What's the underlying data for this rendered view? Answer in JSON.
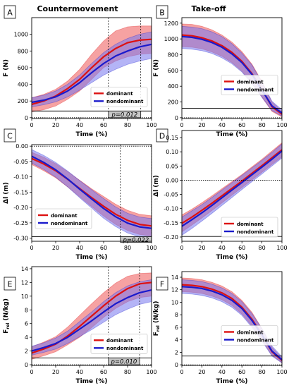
{
  "figure": {
    "col_titles": [
      "Countermovement",
      "Take-off"
    ],
    "colors": {
      "dominant": "#dd1111",
      "nondominant": "#1a1acc",
      "dominant_band": "#ee5555",
      "nondominant_band": "#7777ee",
      "significance_fill": "#c8c8c8"
    }
  },
  "chart_data": [
    {
      "panel": "A",
      "type": "line",
      "xlabel": "Time (%)",
      "ylabel": "F (N)",
      "xlim": [
        0,
        100
      ],
      "ylim": [
        -10,
        1200
      ],
      "xticks": [
        0,
        20,
        40,
        60,
        80,
        100
      ],
      "yticks": [
        0,
        200,
        400,
        600,
        800,
        1000
      ],
      "ytick_labels": [
        "0",
        "200",
        "400",
        "600",
        "800",
        "1000"
      ],
      "x": [
        0,
        10,
        20,
        30,
        40,
        50,
        60,
        70,
        80,
        90,
        100
      ],
      "series": [
        {
          "name": "dominant",
          "mean": [
            160,
            200,
            260,
            350,
            460,
            600,
            730,
            830,
            900,
            930,
            940
          ],
          "lower": [
            70,
            95,
            140,
            220,
            320,
            460,
            600,
            680,
            730,
            760,
            770
          ],
          "upper": [
            240,
            280,
            340,
            440,
            580,
            760,
            920,
            1040,
            1090,
            1100,
            1100
          ]
        },
        {
          "name": "nondominant",
          "mean": [
            185,
            210,
            250,
            320,
            420,
            540,
            650,
            740,
            800,
            850,
            880
          ],
          "lower": [
            130,
            155,
            190,
            250,
            330,
            420,
            510,
            580,
            640,
            680,
            710
          ],
          "upper": [
            240,
            270,
            320,
            400,
            510,
            650,
            780,
            880,
            950,
            1000,
            1030
          ]
        }
      ],
      "hline": 0,
      "threshold": 80,
      "significant_interval": [
        64,
        91
      ],
      "p_label": "p=0.012",
      "legend_loc": "lower right"
    },
    {
      "panel": "B",
      "type": "line",
      "xlabel": "Time (%)",
      "ylabel": "F (N)",
      "xlim": [
        0,
        100
      ],
      "ylim": [
        -10,
        1270
      ],
      "xticks": [
        0,
        20,
        40,
        60,
        80,
        100
      ],
      "yticks": [
        0,
        200,
        400,
        600,
        800,
        1000,
        1200
      ],
      "ytick_labels": [
        "0",
        "200",
        "400",
        "600",
        "800",
        "1000",
        "1200"
      ],
      "x": [
        0,
        10,
        20,
        30,
        40,
        50,
        60,
        70,
        80,
        90,
        100
      ],
      "series": [
        {
          "name": "dominant",
          "mean": [
            1050,
            1040,
            1015,
            975,
            915,
            830,
            715,
            560,
            360,
            140,
            45
          ],
          "lower": [
            900,
            895,
            875,
            835,
            780,
            700,
            590,
            440,
            260,
            80,
            10
          ],
          "upper": [
            1190,
            1185,
            1160,
            1115,
            1050,
            960,
            840,
            680,
            460,
            200,
            80
          ]
        },
        {
          "name": "nondominant",
          "mean": [
            1030,
            1020,
            995,
            955,
            895,
            810,
            700,
            550,
            350,
            150,
            60
          ],
          "lower": [
            880,
            870,
            850,
            815,
            760,
            685,
            580,
            430,
            260,
            90,
            20
          ],
          "upper": [
            1160,
            1150,
            1130,
            1090,
            1030,
            940,
            820,
            670,
            450,
            210,
            100
          ]
        }
      ],
      "hline": 0,
      "threshold": 120,
      "legend_loc": "center right"
    },
    {
      "panel": "C",
      "type": "line",
      "xlabel": "Time (%)",
      "ylabel": "Δl (m)",
      "xlim": [
        0,
        100
      ],
      "ylim": [
        -0.31,
        0.005
      ],
      "xticks": [
        0,
        20,
        40,
        60,
        80,
        100
      ],
      "yticks": [
        0,
        -0.05,
        -0.1,
        -0.15,
        -0.2,
        -0.25,
        -0.3
      ],
      "ytick_labels": [
        "0.00",
        "-0.05",
        "-0.10",
        "-0.15",
        "-0.20",
        "-0.25",
        "-0.30"
      ],
      "x": [
        0,
        10,
        20,
        30,
        40,
        50,
        60,
        70,
        80,
        90,
        100
      ],
      "series": [
        {
          "name": "dominant",
          "mean": [
            -0.04,
            -0.058,
            -0.08,
            -0.108,
            -0.138,
            -0.168,
            -0.196,
            -0.222,
            -0.242,
            -0.255,
            -0.26
          ],
          "lower": [
            -0.06,
            -0.08,
            -0.103,
            -0.133,
            -0.165,
            -0.197,
            -0.228,
            -0.255,
            -0.275,
            -0.288,
            -0.293
          ],
          "upper": [
            -0.02,
            -0.036,
            -0.057,
            -0.083,
            -0.111,
            -0.139,
            -0.164,
            -0.189,
            -0.209,
            -0.222,
            -0.227
          ]
        },
        {
          "name": "nondominant",
          "mean": [
            -0.033,
            -0.053,
            -0.077,
            -0.107,
            -0.14,
            -0.172,
            -0.203,
            -0.23,
            -0.251,
            -0.263,
            -0.268
          ],
          "lower": [
            -0.055,
            -0.076,
            -0.101,
            -0.133,
            -0.168,
            -0.202,
            -0.235,
            -0.262,
            -0.283,
            -0.296,
            -0.301
          ],
          "upper": [
            -0.011,
            -0.03,
            -0.053,
            -0.081,
            -0.112,
            -0.142,
            -0.171,
            -0.198,
            -0.219,
            -0.231,
            -0.236
          ]
        }
      ],
      "hline": 0,
      "threshold": -0.295,
      "significant_interval": [
        74,
        100
      ],
      "p_label": "p=0.022",
      "legend_loc": "lower left"
    },
    {
      "panel": "D",
      "type": "line",
      "xlabel": "Time (%)",
      "ylabel": "Δl (m)",
      "xlim": [
        0,
        100
      ],
      "ylim": [
        -0.215,
        0.175
      ],
      "xticks": [
        0,
        20,
        40,
        60,
        80,
        100
      ],
      "yticks": [
        0.15,
        0.1,
        0.05,
        0,
        -0.05,
        -0.1,
        -0.15,
        -0.2
      ],
      "ytick_labels": [
        "0.15",
        "0.10",
        "0.05",
        "0.00",
        "-0.05",
        "-0.10",
        "-0.15",
        "-0.20"
      ],
      "x": [
        0,
        10,
        20,
        30,
        40,
        50,
        60,
        70,
        80,
        90,
        100
      ],
      "series": [
        {
          "name": "dominant",
          "mean": [
            -0.152,
            -0.13,
            -0.106,
            -0.081,
            -0.055,
            -0.029,
            -0.003,
            0.024,
            0.051,
            0.079,
            0.107
          ],
          "lower": [
            -0.182,
            -0.158,
            -0.133,
            -0.107,
            -0.08,
            -0.053,
            -0.026,
            0.001,
            0.028,
            0.055,
            0.082
          ],
          "upper": [
            -0.122,
            -0.102,
            -0.079,
            -0.055,
            -0.03,
            -0.005,
            0.02,
            0.047,
            0.074,
            0.103,
            0.132
          ]
        },
        {
          "name": "nondominant",
          "mean": [
            -0.162,
            -0.139,
            -0.115,
            -0.089,
            -0.062,
            -0.035,
            -0.008,
            0.019,
            0.046,
            0.074,
            0.103
          ],
          "lower": [
            -0.194,
            -0.17,
            -0.144,
            -0.117,
            -0.089,
            -0.061,
            -0.033,
            -0.005,
            0.022,
            0.05,
            0.078
          ],
          "upper": [
            -0.13,
            -0.108,
            -0.086,
            -0.061,
            -0.035,
            -0.009,
            0.017,
            0.043,
            0.07,
            0.098,
            0.128
          ]
        }
      ],
      "hline": 0,
      "threshold": -0.198,
      "legend_loc": "lower right"
    },
    {
      "panel": "E",
      "type": "line",
      "xlabel": "Time (%)",
      "ylabel": "F",
      "ylabel_sub": "rel",
      "ylabel_unit": "(N/kg)",
      "xlim": [
        0,
        100
      ],
      "ylim": [
        -0.1,
        14.3
      ],
      "xticks": [
        0,
        20,
        40,
        60,
        80,
        100
      ],
      "yticks": [
        0,
        2,
        4,
        6,
        8,
        10,
        12,
        14
      ],
      "ytick_labels": [
        "0",
        "2",
        "4",
        "6",
        "8",
        "10",
        "12",
        "14"
      ],
      "x": [
        0,
        10,
        20,
        30,
        40,
        50,
        60,
        70,
        80,
        90,
        100
      ],
      "series": [
        {
          "name": "dominant",
          "mean": [
            1.7,
            2.3,
            3.0,
            4.2,
            5.6,
            7.1,
            8.6,
            10.0,
            11.1,
            11.8,
            12.0
          ],
          "lower": [
            0.8,
            1.3,
            1.9,
            2.9,
            4.0,
            5.4,
            6.9,
            8.2,
            9.2,
            9.8,
            10.0
          ],
          "upper": [
            2.6,
            3.3,
            4.1,
            5.5,
            7.2,
            8.9,
            10.5,
            11.9,
            12.9,
            13.3,
            13.4
          ]
        },
        {
          "name": "nondominant",
          "mean": [
            2.0,
            2.5,
            3.1,
            4.0,
            5.2,
            6.4,
            7.7,
            8.9,
            9.8,
            10.5,
            10.9
          ],
          "lower": [
            1.4,
            1.8,
            2.3,
            3.1,
            4.1,
            5.1,
            6.2,
            7.3,
            8.1,
            8.8,
            9.2
          ],
          "upper": [
            2.7,
            3.2,
            3.9,
            4.9,
            6.3,
            7.7,
            9.2,
            10.5,
            11.5,
            12.1,
            12.4
          ]
        }
      ],
      "hline": 0,
      "threshold": 1.0,
      "significant_interval": [
        64,
        90
      ],
      "p_label": "p=0.010",
      "legend_loc": "lower right"
    },
    {
      "panel": "F",
      "type": "line",
      "xlabel": "Time (%)",
      "ylabel": "F",
      "ylabel_sub": "rel",
      "ylabel_unit": "(N/kg)",
      "xlim": [
        0,
        100
      ],
      "ylim": [
        -0.1,
        14.9
      ],
      "xticks": [
        0,
        20,
        40,
        60,
        80,
        100
      ],
      "yticks": [
        0,
        2,
        4,
        6,
        8,
        10,
        12,
        14
      ],
      "ytick_labels": [
        "0",
        "2",
        "4",
        "6",
        "8",
        "10",
        "12",
        "14"
      ],
      "x": [
        0,
        10,
        20,
        30,
        40,
        50,
        60,
        70,
        80,
        90,
        100
      ],
      "series": [
        {
          "name": "dominant",
          "mean": [
            12.8,
            12.7,
            12.5,
            12.1,
            11.5,
            10.6,
            9.2,
            7.3,
            4.8,
            2.1,
            0.7
          ],
          "lower": [
            11.7,
            11.6,
            11.4,
            11.0,
            10.4,
            9.5,
            8.1,
            6.2,
            3.9,
            1.5,
            0.3
          ],
          "upper": [
            13.9,
            13.8,
            13.6,
            13.2,
            12.6,
            11.7,
            10.3,
            8.4,
            5.8,
            2.8,
            1.1
          ]
        },
        {
          "name": "nondominant",
          "mean": [
            12.5,
            12.4,
            12.2,
            11.8,
            11.2,
            10.3,
            9.0,
            7.1,
            4.8,
            2.2,
            0.8
          ],
          "lower": [
            11.4,
            11.3,
            11.1,
            10.7,
            10.1,
            9.2,
            7.9,
            6.0,
            3.8,
            1.4,
            0.3
          ],
          "upper": [
            13.6,
            13.5,
            13.3,
            12.9,
            12.3,
            11.4,
            10.1,
            8.2,
            5.8,
            3.0,
            1.3
          ]
        }
      ],
      "hline": 0,
      "threshold": 1.4,
      "legend_loc": "center right"
    }
  ]
}
